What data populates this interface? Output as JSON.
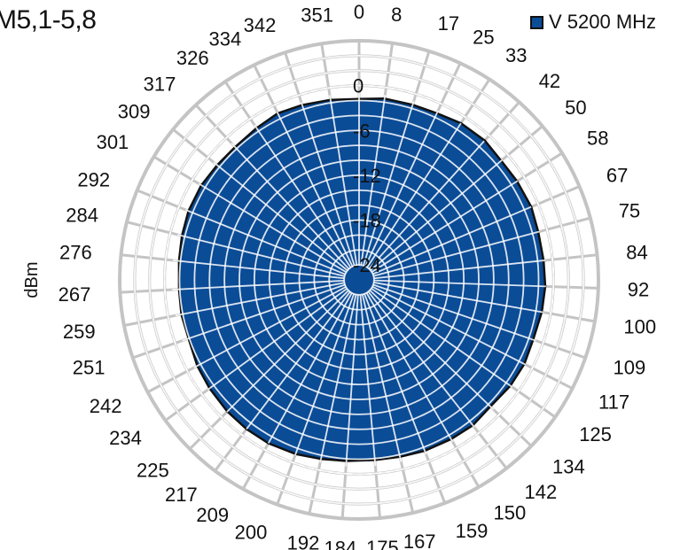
{
  "chart_data": {
    "type": "polar-area",
    "title": "M5,1-5,8",
    "ylabel": "dBm",
    "radial_ticks": [
      "0",
      "-6",
      "-12",
      "-18",
      "-24"
    ],
    "radial_range": [
      -26,
      6
    ],
    "angle_labels": [
      "0",
      "8",
      "17",
      "25",
      "33",
      "42",
      "50",
      "58",
      "67",
      "75",
      "84",
      "92",
      "100",
      "109",
      "117",
      "125",
      "134",
      "142",
      "150",
      "159",
      "167",
      "175",
      "184",
      "192",
      "200",
      "209",
      "217",
      "225",
      "234",
      "242",
      "251",
      "259",
      "267",
      "276",
      "284",
      "292",
      "301",
      "309",
      "317",
      "326",
      "334",
      "342",
      "351"
    ],
    "series": [
      {
        "name": "V 5200 MHz",
        "color": "#0b4c97",
        "angles": [
          0,
          8,
          17,
          25,
          33,
          42,
          50,
          58,
          67,
          75,
          84,
          92,
          100,
          109,
          117,
          125,
          134,
          142,
          150,
          159,
          167,
          175,
          184,
          192,
          200,
          209,
          217,
          225,
          234,
          242,
          251,
          259,
          267,
          276,
          284,
          292,
          301,
          309,
          317,
          326,
          334,
          342,
          351
        ],
        "values": [
          -1.8,
          -1.5,
          -1.5,
          -1.4,
          -1.0,
          -0.9,
          -1.2,
          -1.1,
          -1.0,
          -1.2,
          -1.2,
          -1.1,
          -1.2,
          -1.4,
          -1.2,
          -1.3,
          -1.6,
          -1.3,
          -1.4,
          -1.5,
          -1.7,
          -1.8,
          -1.7,
          -1.5,
          -1.2,
          -1.0,
          -1.0,
          -1.1,
          -1.3,
          -1.5,
          -1.9,
          -1.8,
          -1.9,
          -1.8,
          -1.6,
          -1.4,
          -1.4,
          -1.6,
          -1.7,
          -1.5,
          -1.2,
          -1.4,
          -1.6
        ]
      }
    ]
  }
}
